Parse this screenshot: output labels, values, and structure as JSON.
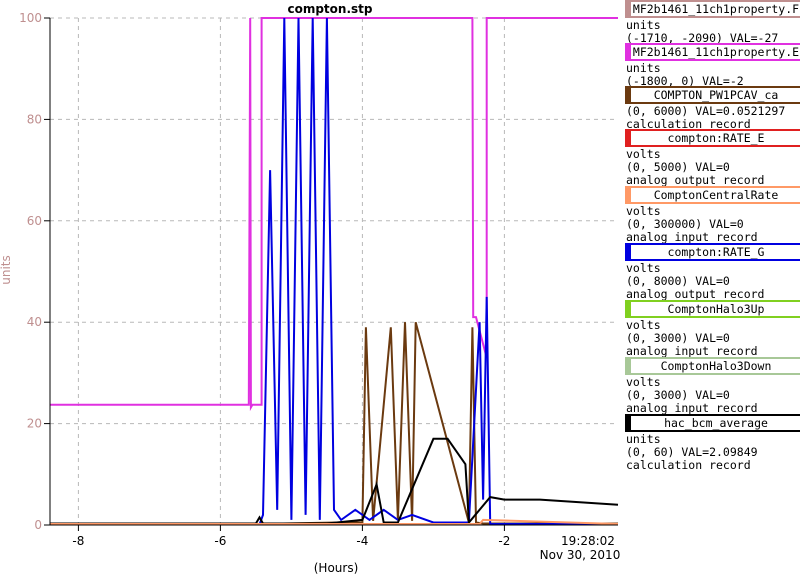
{
  "chart_data": {
    "type": "line",
    "title": "compton.stp",
    "xlabel": "(Hours)",
    "ylabel": "units",
    "xlim": [
      -8.4,
      -0.4
    ],
    "ylim": [
      0,
      100
    ],
    "xticks": [
      -8,
      -6,
      -4,
      -2
    ],
    "yticks": [
      0,
      20,
      40,
      60,
      80,
      100
    ],
    "grid": true,
    "timestamp": "19:28:02",
    "date": "Nov 30, 2010",
    "legend_position": "right",
    "series": [
      {
        "name": "MF2b1461_11ch1property.E",
        "color": "#e030e0",
        "x": [
          -8.4,
          -5.6,
          -5.58,
          -5.57,
          -5.55,
          -5.42,
          -5.42,
          -2.45,
          -2.44,
          -2.4,
          -2.25,
          -2.25,
          -0.4
        ],
        "y": [
          23.7,
          23.7,
          100,
          23.2,
          23.7,
          23.7,
          100,
          100,
          41,
          41,
          33,
          100,
          100
        ]
      },
      {
        "name": "COMPTON_PW1PCAV_ca",
        "color": "#6b3a10",
        "x": [
          -8.4,
          -5.5,
          -4.35,
          -4.0,
          -3.95,
          -3.85,
          -3.6,
          -3.5,
          -3.4,
          -3.3,
          -3.25,
          -2.5,
          -2.45,
          -2.4,
          -2.3,
          -0.4
        ],
        "y": [
          0.2,
          0.2,
          0.5,
          0.5,
          39,
          0.8,
          39,
          1,
          40,
          0.8,
          40,
          0.5,
          39,
          0.5,
          0.3,
          0.3
        ]
      },
      {
        "name": "compton:RATE_G",
        "color": "#0000e0",
        "x": [
          -8.4,
          -5.45,
          -5.4,
          -5.3,
          -5.2,
          -5.1,
          -5.0,
          -4.9,
          -4.8,
          -4.7,
          -4.6,
          -4.5,
          -4.4,
          -4.3,
          -4.1,
          -3.9,
          -3.7,
          -3.5,
          -3.3,
          -3.0,
          -2.5,
          -2.35,
          -2.3,
          -2.25,
          -2.2,
          -0.4
        ],
        "y": [
          0.1,
          0.1,
          2,
          70,
          3,
          100,
          1,
          100,
          2,
          100,
          1,
          100,
          3,
          1,
          3,
          1,
          3,
          1,
          2,
          0.5,
          0.5,
          40,
          5,
          45,
          0.2,
          0.2
        ]
      },
      {
        "name": "hac_bcm_average",
        "color": "#000000",
        "x": [
          -8.4,
          -5.5,
          -5.45,
          -5.4,
          -4.5,
          -4.0,
          -3.8,
          -3.7,
          -3.5,
          -3.0,
          -2.8,
          -2.55,
          -2.5,
          -2.2,
          -2.0,
          -1.5,
          -0.4
        ],
        "y": [
          0.3,
          0.3,
          1.5,
          0.3,
          0.3,
          1,
          8,
          0.5,
          0.5,
          17,
          17,
          12,
          0.5,
          5.5,
          5,
          5,
          4
        ]
      },
      {
        "name": "ComptonCentralRate",
        "color": "#ff9966",
        "x": [
          -8.4,
          -2.35,
          -2.3,
          -0.4
        ],
        "y": [
          0.2,
          0.2,
          1,
          0.2
        ]
      }
    ]
  },
  "legend": [
    {
      "name": "MF2b1461_11ch1property.F",
      "color": "#bf8f8f",
      "lines": [
        "units",
        "(-1710, -2090) VAL=-27"
      ]
    },
    {
      "name": "MF2b1461_11ch1property.E",
      "color": "#e030e0",
      "lines": [
        "units",
        "(-1800, 0) VAL=-2"
      ]
    },
    {
      "name": "COMPTON_PW1PCAV_ca",
      "color": "#6b3a10",
      "lines": [
        "(0, 6000) VAL=0.0521297",
        "calculation record"
      ]
    },
    {
      "name": "compton:RATE_E",
      "color": "#e02020",
      "lines": [
        "volts",
        "(0, 5000)  VAL=0",
        "analog output record"
      ]
    },
    {
      "name": "ComptonCentralRate",
      "color": "#ff9966",
      "lines": [
        "volts",
        "(0, 300000) VAL=0",
        "analog input record"
      ]
    },
    {
      "name": "compton:RATE_G",
      "color": "#0000e0",
      "lines": [
        "volts",
        "(0, 8000) VAL=0",
        "analog output record"
      ]
    },
    {
      "name": "ComptonHalo3Up",
      "color": "#80d020",
      "lines": [
        "volts",
        "(0, 3000)  VAL=0",
        "analog input record"
      ]
    },
    {
      "name": "ComptonHalo3Down",
      "color": "#a8c898",
      "lines": [
        "volts",
        "(0, 3000)  VAL=0",
        "analog input record"
      ]
    },
    {
      "name": "hac_bcm_average",
      "color": "#000000",
      "lines": [
        "units",
        "(0, 60) VAL=2.09849",
        "calculation record"
      ]
    }
  ]
}
